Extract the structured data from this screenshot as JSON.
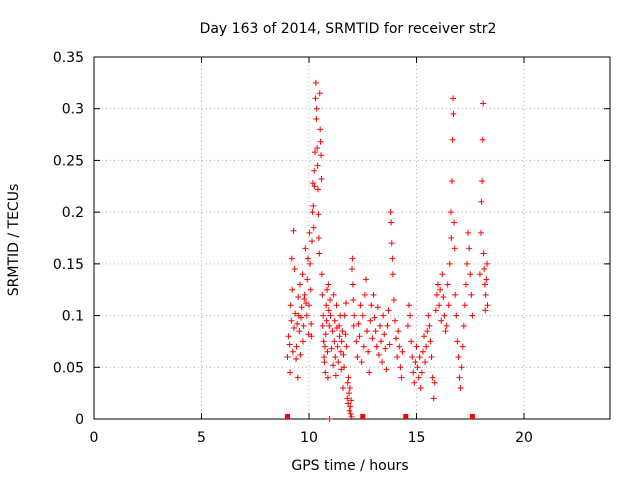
{
  "chart_data": {
    "type": "scatter",
    "title": "Day 163 of 2014, SRMTID for receiver str2",
    "xlabel": "GPS time / hours",
    "ylabel": "SRMTID / TECUs",
    "xlim": [
      0,
      24
    ],
    "ylim": [
      0,
      0.35
    ],
    "xticks": [
      "0",
      "5",
      "10",
      "15",
      "20"
    ],
    "xtick_values": [
      0,
      5,
      10,
      15,
      20
    ],
    "yticks": [
      "0",
      "0.05",
      "0.1",
      "0.15",
      "0.2",
      "0.25",
      "0.3",
      "0.35"
    ],
    "ytick_values": [
      0,
      0.05,
      0.1,
      0.15,
      0.2,
      0.25,
      0.3,
      0.35
    ],
    "grid": true,
    "marker": "+",
    "color": "#ff0000",
    "gap_markers_x": [
      9.0,
      12.5,
      14.5,
      17.6
    ],
    "series": [
      {
        "name": "SRMTID",
        "points": [
          [
            9.0,
            0.06
          ],
          [
            9.05,
            0.08
          ],
          [
            9.1,
            0.072
          ],
          [
            9.12,
            0.045
          ],
          [
            9.15,
            0.11
          ],
          [
            9.18,
            0.095
          ],
          [
            9.2,
            0.155
          ],
          [
            9.22,
            0.125
          ],
          [
            9.25,
            0.065
          ],
          [
            9.28,
            0.182
          ],
          [
            9.3,
            0.088
          ],
          [
            9.33,
            0.145
          ],
          [
            9.36,
            0.102
          ],
          [
            9.4,
            0.058
          ],
          [
            9.42,
            0.07
          ],
          [
            9.45,
            0.092
          ],
          [
            9.48,
            0.04
          ],
          [
            9.5,
            0.118
          ],
          [
            9.52,
            0.1
          ],
          [
            9.55,
            0.085
          ],
          [
            9.58,
            0.13
          ],
          [
            9.6,
            0.062
          ],
          [
            9.63,
            0.098
          ],
          [
            9.66,
            0.108
          ],
          [
            9.7,
            0.14
          ],
          [
            9.72,
            0.075
          ],
          [
            9.75,
            0.09
          ],
          [
            9.78,
            0.116
          ],
          [
            9.8,
            0.12
          ],
          [
            9.83,
            0.165
          ],
          [
            9.86,
            0.112
          ],
          [
            9.9,
            0.1
          ],
          [
            9.92,
            0.135
          ],
          [
            9.95,
            0.155
          ],
          [
            9.98,
            0.082
          ],
          [
            10.0,
            0.11
          ],
          [
            10.02,
            0.18
          ],
          [
            10.05,
            0.15
          ],
          [
            10.08,
            0.125
          ],
          [
            10.1,
            0.092
          ],
          [
            10.12,
            0.08
          ],
          [
            10.14,
            0.172
          ],
          [
            10.16,
            0.2
          ],
          [
            10.18,
            0.228
          ],
          [
            10.2,
            0.206
          ],
          [
            10.22,
            0.185
          ],
          [
            10.24,
            0.24
          ],
          [
            10.26,
            0.225
          ],
          [
            10.28,
            0.258
          ],
          [
            10.3,
            0.31
          ],
          [
            10.32,
            0.325
          ],
          [
            10.34,
            0.29
          ],
          [
            10.36,
            0.3
          ],
          [
            10.38,
            0.262
          ],
          [
            10.4,
            0.245
          ],
          [
            10.42,
            0.222
          ],
          [
            10.44,
            0.198
          ],
          [
            10.46,
            0.175
          ],
          [
            10.48,
            0.16
          ],
          [
            10.5,
            0.315
          ],
          [
            10.52,
            0.28
          ],
          [
            10.54,
            0.268
          ],
          [
            10.56,
            0.255
          ],
          [
            10.58,
            0.232
          ],
          [
            10.6,
            0.14
          ],
          [
            10.62,
            0.12
          ],
          [
            10.64,
            0.09
          ],
          [
            10.66,
            0.1
          ],
          [
            10.68,
            0.075
          ],
          [
            10.7,
            0.06
          ],
          [
            10.72,
            0.055
          ],
          [
            10.74,
            0.07
          ],
          [
            10.76,
            0.045
          ],
          [
            10.78,
            0.082
          ],
          [
            10.8,
            0.11
          ],
          [
            10.82,
            0.095
          ],
          [
            10.84,
            0.125
          ],
          [
            10.86,
            0.065
          ],
          [
            10.88,
            0.04
          ],
          [
            10.9,
            0.13
          ],
          [
            10.92,
            0.105
          ],
          [
            10.94,
            0.09
          ],
          [
            10.96,
            0.0
          ],
          [
            10.98,
            0.115
          ],
          [
            11.0,
            0.1
          ],
          [
            11.05,
            0.068
          ],
          [
            11.1,
            0.085
          ],
          [
            11.12,
            0.052
          ],
          [
            11.15,
            0.12
          ],
          [
            11.18,
            0.075
          ],
          [
            11.2,
            0.095
          ],
          [
            11.22,
            0.06
          ],
          [
            11.25,
            0.042
          ],
          [
            11.28,
            0.11
          ],
          [
            11.3,
            0.088
          ],
          [
            11.33,
            0.07
          ],
          [
            11.36,
            0.055
          ],
          [
            11.4,
            0.09
          ],
          [
            11.42,
            0.08
          ],
          [
            11.45,
            0.1
          ],
          [
            11.48,
            0.065
          ],
          [
            11.5,
            0.048
          ],
          [
            11.52,
            0.075
          ],
          [
            11.55,
            0.085
          ],
          [
            11.58,
            0.03
          ],
          [
            11.6,
            0.062
          ],
          [
            11.63,
            0.05
          ],
          [
            11.66,
            0.1
          ],
          [
            11.7,
            0.082
          ],
          [
            11.72,
            0.112
          ],
          [
            11.75,
            0.07
          ],
          [
            11.78,
            0.02
          ],
          [
            11.8,
            0.035
          ],
          [
            11.82,
            0.015
          ],
          [
            11.84,
            0.04
          ],
          [
            11.86,
            0.025
          ],
          [
            11.88,
            0.008
          ],
          [
            11.9,
            0.03
          ],
          [
            11.92,
            0.012
          ],
          [
            11.94,
            0.005
          ],
          [
            11.96,
            0.018
          ],
          [
            11.98,
            0.002
          ],
          [
            12.0,
            0.145
          ],
          [
            12.02,
            0.155
          ],
          [
            12.04,
            0.13
          ],
          [
            12.06,
            0.115
          ],
          [
            12.08,
            0.09
          ],
          [
            12.1,
            0.1
          ],
          [
            12.2,
            0.075
          ],
          [
            12.25,
            0.06
          ],
          [
            12.3,
            0.092
          ],
          [
            12.35,
            0.08
          ],
          [
            12.4,
            0.11
          ],
          [
            12.45,
            0.055
          ],
          [
            12.5,
            0.1
          ],
          [
            12.55,
            0.07
          ],
          [
            12.6,
            0.12
          ],
          [
            12.65,
            0.135
          ],
          [
            12.7,
            0.085
          ],
          [
            12.75,
            0.065
          ],
          [
            12.8,
            0.045
          ],
          [
            12.85,
            0.095
          ],
          [
            12.9,
            0.11
          ],
          [
            12.95,
            0.078
          ],
          [
            13.0,
            0.12
          ],
          [
            13.05,
            0.098
          ],
          [
            13.1,
            0.085
          ],
          [
            13.15,
            0.07
          ],
          [
            13.2,
            0.108
          ],
          [
            13.25,
            0.062
          ],
          [
            13.3,
            0.09
          ],
          [
            13.35,
            0.075
          ],
          [
            13.4,
            0.055
          ],
          [
            13.45,
            0.1
          ],
          [
            13.5,
            0.082
          ],
          [
            13.55,
            0.068
          ],
          [
            13.6,
            0.048
          ],
          [
            13.65,
            0.09
          ],
          [
            13.7,
            0.105
          ],
          [
            13.75,
            0.072
          ],
          [
            13.8,
            0.2
          ],
          [
            13.82,
            0.19
          ],
          [
            13.85,
            0.17
          ],
          [
            13.88,
            0.155
          ],
          [
            13.9,
            0.14
          ],
          [
            13.95,
            0.115
          ],
          [
            14.0,
            0.095
          ],
          [
            14.05,
            0.078
          ],
          [
            14.1,
            0.06
          ],
          [
            14.15,
            0.085
          ],
          [
            14.2,
            0.07
          ],
          [
            14.25,
            0.05
          ],
          [
            14.3,
            0.04
          ],
          [
            14.35,
            0.065
          ],
          [
            14.6,
            0.09
          ],
          [
            14.65,
            0.11
          ],
          [
            14.7,
            0.1
          ],
          [
            14.75,
            0.075
          ],
          [
            14.8,
            0.06
          ],
          [
            14.85,
            0.045
          ],
          [
            14.9,
            0.035
          ],
          [
            14.95,
            0.055
          ],
          [
            15.0,
            0.07
          ],
          [
            15.05,
            0.05
          ],
          [
            15.1,
            0.04
          ],
          [
            15.15,
            0.06
          ],
          [
            15.2,
            0.03
          ],
          [
            15.25,
            0.045
          ],
          [
            15.3,
            0.065
          ],
          [
            15.35,
            0.08
          ],
          [
            15.4,
            0.055
          ],
          [
            15.45,
            0.07
          ],
          [
            15.5,
            0.085
          ],
          [
            15.55,
            0.1
          ],
          [
            15.6,
            0.09
          ],
          [
            15.65,
            0.075
          ],
          [
            15.7,
            0.06
          ],
          [
            15.75,
            0.04
          ],
          [
            15.8,
            0.02
          ],
          [
            15.85,
            0.035
          ],
          [
            15.9,
            0.105
          ],
          [
            15.95,
            0.12
          ],
          [
            16.0,
            0.13
          ],
          [
            16.05,
            0.11
          ],
          [
            16.1,
            0.125
          ],
          [
            16.15,
            0.095
          ],
          [
            16.2,
            0.14
          ],
          [
            16.25,
            0.118
          ],
          [
            16.3,
            0.1
          ],
          [
            16.35,
            0.085
          ],
          [
            16.4,
            0.09
          ],
          [
            16.45,
            0.13
          ],
          [
            16.5,
            0.11
          ],
          [
            16.55,
            0.15
          ],
          [
            16.6,
            0.2
          ],
          [
            16.62,
            0.175
          ],
          [
            16.65,
            0.23
          ],
          [
            16.68,
            0.27
          ],
          [
            16.7,
            0.31
          ],
          [
            16.72,
            0.295
          ],
          [
            16.75,
            0.19
          ],
          [
            16.78,
            0.165
          ],
          [
            16.8,
            0.12
          ],
          [
            16.85,
            0.1
          ],
          [
            16.9,
            0.075
          ],
          [
            16.95,
            0.06
          ],
          [
            17.0,
            0.04
          ],
          [
            17.05,
            0.03
          ],
          [
            17.1,
            0.05
          ],
          [
            17.15,
            0.07
          ],
          [
            17.2,
            0.09
          ],
          [
            17.25,
            0.11
          ],
          [
            17.3,
            0.13
          ],
          [
            17.35,
            0.15
          ],
          [
            17.4,
            0.18
          ],
          [
            17.45,
            0.165
          ],
          [
            17.5,
            0.14
          ],
          [
            17.55,
            0.12
          ],
          [
            17.6,
            0.1
          ],
          [
            17.95,
            0.14
          ],
          [
            18.0,
            0.18
          ],
          [
            18.02,
            0.21
          ],
          [
            18.05,
            0.23
          ],
          [
            18.08,
            0.27
          ],
          [
            18.1,
            0.305
          ],
          [
            18.12,
            0.16
          ],
          [
            18.15,
            0.145
          ],
          [
            18.18,
            0.13
          ],
          [
            18.2,
            0.105
          ],
          [
            18.22,
            0.12
          ],
          [
            18.25,
            0.135
          ],
          [
            18.28,
            0.15
          ],
          [
            18.3,
            0.11
          ]
        ]
      }
    ]
  }
}
